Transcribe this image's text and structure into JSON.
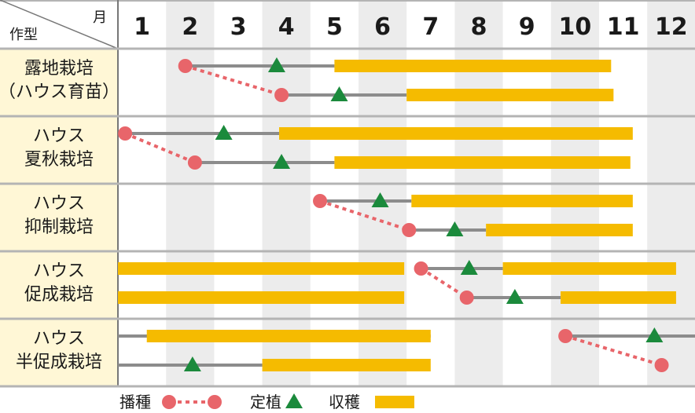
{
  "header": {
    "month_label": "月",
    "type_label": "作型"
  },
  "months": [
    "1",
    "2",
    "3",
    "4",
    "5",
    "6",
    "7",
    "8",
    "9",
    "10",
    "11",
    "12"
  ],
  "rows": [
    {
      "lines": [
        "露地栽培",
        "（ハウス育苗）"
      ],
      "tracks": [
        {
          "sow": 2.4,
          "plant": 4.3,
          "harvest": [
            [
              5.5,
              11.25
            ]
          ]
        },
        {
          "sow": 4.4,
          "plant": 5.6,
          "harvest": [
            [
              7.0,
              11.3
            ]
          ]
        }
      ]
    },
    {
      "lines": [
        "ハウス",
        "夏秋栽培"
      ],
      "tracks": [
        {
          "sow": 1.15,
          "plant": 3.2,
          "harvest": [
            [
              4.35,
              11.7
            ]
          ]
        },
        {
          "sow": 2.6,
          "plant": 4.4,
          "harvest": [
            [
              5.5,
              11.65
            ]
          ]
        }
      ]
    },
    {
      "lines": [
        "ハウス",
        "抑制栽培"
      ],
      "tracks": [
        {
          "sow": 5.2,
          "plant": 6.45,
          "harvest": [
            [
              7.1,
              11.7
            ]
          ]
        },
        {
          "sow": 7.05,
          "plant": 8.0,
          "harvest": [
            [
              8.65,
              11.7
            ]
          ]
        }
      ]
    },
    {
      "lines": [
        "ハウス",
        "促成栽培"
      ],
      "tracks": [
        {
          "sow": 7.3,
          "plant": 8.3,
          "harvest": [
            [
              1.0,
              6.95
            ],
            [
              9.0,
              12.6
            ]
          ]
        },
        {
          "sow": 8.25,
          "plant": 9.25,
          "harvest": [
            [
              1.0,
              6.95
            ],
            [
              10.2,
              12.6
            ]
          ]
        }
      ]
    },
    {
      "lines": [
        "ハウス",
        "半促成栽培"
      ],
      "tracks": [
        {
          "sow": 10.3,
          "plant": 12.15,
          "harvest": [
            [
              1.6,
              7.5
            ]
          ],
          "line_from": 1.0
        },
        {
          "sow": 12.3,
          "plant": 2.55,
          "harvest": [
            [
              4.0,
              7.5
            ]
          ],
          "line_from": 1.0,
          "line_to": 4.0
        }
      ]
    }
  ],
  "legend": {
    "sow": "播種",
    "plant": "定植",
    "harvest": "収穫"
  },
  "colors": {
    "sow": "#e8656a",
    "plant": "#1b8a3c",
    "harvest": "#f5bb00",
    "line": "#8c8c8c",
    "label_bg": "#fff7d6",
    "stripe": "#ececec",
    "grid": "#b4b4b4"
  }
}
